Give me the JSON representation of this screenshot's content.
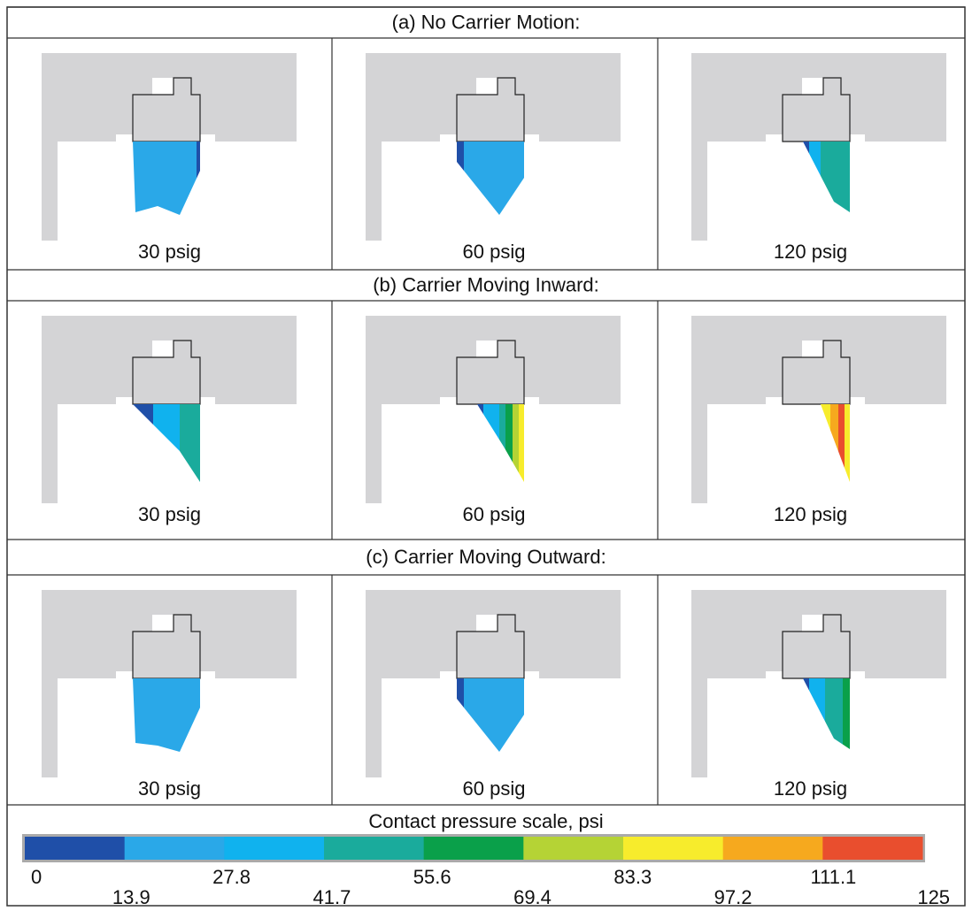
{
  "sections": [
    {
      "title": "(a) No Carrier Motion:",
      "panels": [
        "30 psig",
        "60 psig",
        "120 psig"
      ]
    },
    {
      "title": "(b) Carrier Moving Inward:",
      "panels": [
        "30 psig",
        "60 psig",
        "120 psig"
      ]
    },
    {
      "title": "(c) Carrier Moving Outward:",
      "panels": [
        "30 psig",
        "60 psig",
        "120 psig"
      ]
    }
  ],
  "scale": {
    "title": "Contact pressure scale, psi",
    "ticks": [
      "0",
      "13.9",
      "27.8",
      "41.7",
      "55.6",
      "69.4",
      "83.3",
      "97.2",
      "111.1",
      "125"
    ],
    "colors": [
      "#1f4fa8",
      "#2aa8e8",
      "#10b2ee",
      "#1aab9c",
      "#0aa04a",
      "#b5d335",
      "#f7ec2c",
      "#f6a91e",
      "#e94e2e"
    ]
  }
}
